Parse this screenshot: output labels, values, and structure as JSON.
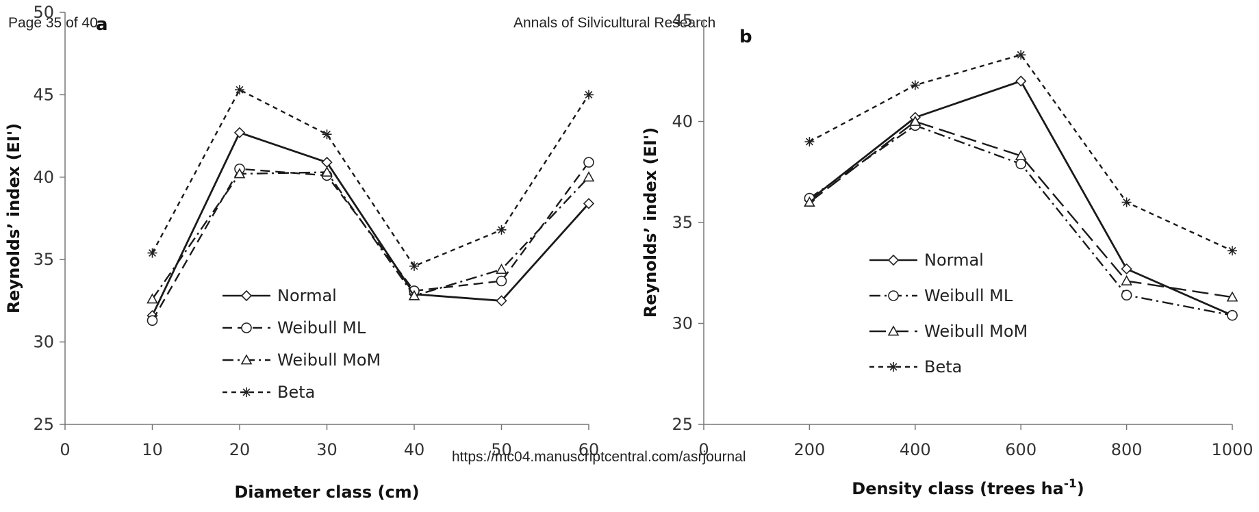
{
  "header": {
    "page": "Page 35 of 40",
    "journal": "Annals of Silvicultural Research",
    "footer_url": "https://mc04.manuscriptcentral.com/asrjournal"
  },
  "chart_data": [
    {
      "panel": "a",
      "type": "line",
      "xlabel": "Diameter class (cm)",
      "ylabel": "Reynolds’ index (EI')",
      "xlim": [
        0,
        60
      ],
      "ylim": [
        25,
        50
      ],
      "x_ticks": [
        0,
        10,
        20,
        30,
        40,
        50,
        60
      ],
      "y_ticks": [
        25,
        30,
        35,
        40,
        45,
        50
      ],
      "grid": false,
      "legend_position": "lower-center",
      "x": [
        10,
        20,
        30,
        40,
        50,
        60
      ],
      "series": [
        {
          "name": "Normal",
          "marker": "diamond",
          "dash": "solid",
          "values": [
            31.6,
            42.7,
            40.9,
            32.9,
            32.5,
            38.4
          ]
        },
        {
          "name": "Weibull ML",
          "marker": "circle",
          "dash": "dashed",
          "values": [
            31.3,
            40.5,
            40.1,
            33.1,
            33.7,
            40.9
          ]
        },
        {
          "name": "Weibull MoM",
          "marker": "triangle",
          "dash": "dashdot",
          "values": [
            32.6,
            40.2,
            40.3,
            32.8,
            34.4,
            40.0
          ]
        },
        {
          "name": "Beta",
          "marker": "star",
          "dash": "dotted",
          "values": [
            35.4,
            45.3,
            42.6,
            34.6,
            36.8,
            45.0
          ]
        }
      ]
    },
    {
      "panel": "b",
      "type": "line",
      "xlabel": "Density class  (trees ha",
      "xlabel_sup": "-1",
      "xlabel_end": ")",
      "ylabel": "Reynolds’ index (EI')",
      "xlim": [
        0,
        1000
      ],
      "ylim": [
        25,
        45
      ],
      "x_ticks": [
        0,
        200,
        400,
        600,
        800,
        1000
      ],
      "y_ticks": [
        25,
        30,
        35,
        40,
        45
      ],
      "grid": false,
      "legend_position": "lower-center",
      "x": [
        200,
        400,
        600,
        800,
        1000
      ],
      "series": [
        {
          "name": "Normal",
          "marker": "diamond",
          "dash": "solid",
          "values": [
            36.1,
            40.2,
            42.0,
            32.7,
            30.4
          ]
        },
        {
          "name": "Weibull ML",
          "marker": "circle",
          "dash": "dashdot",
          "values": [
            36.2,
            39.8,
            37.9,
            31.4,
            30.4
          ]
        },
        {
          "name": "Weibull MoM",
          "marker": "triangle",
          "dash": "longdash",
          "values": [
            36.0,
            40.0,
            38.3,
            32.1,
            31.3
          ]
        },
        {
          "name": "Beta",
          "marker": "star",
          "dash": "dotted",
          "values": [
            39.0,
            41.8,
            43.3,
            36.0,
            33.6
          ]
        }
      ]
    }
  ]
}
